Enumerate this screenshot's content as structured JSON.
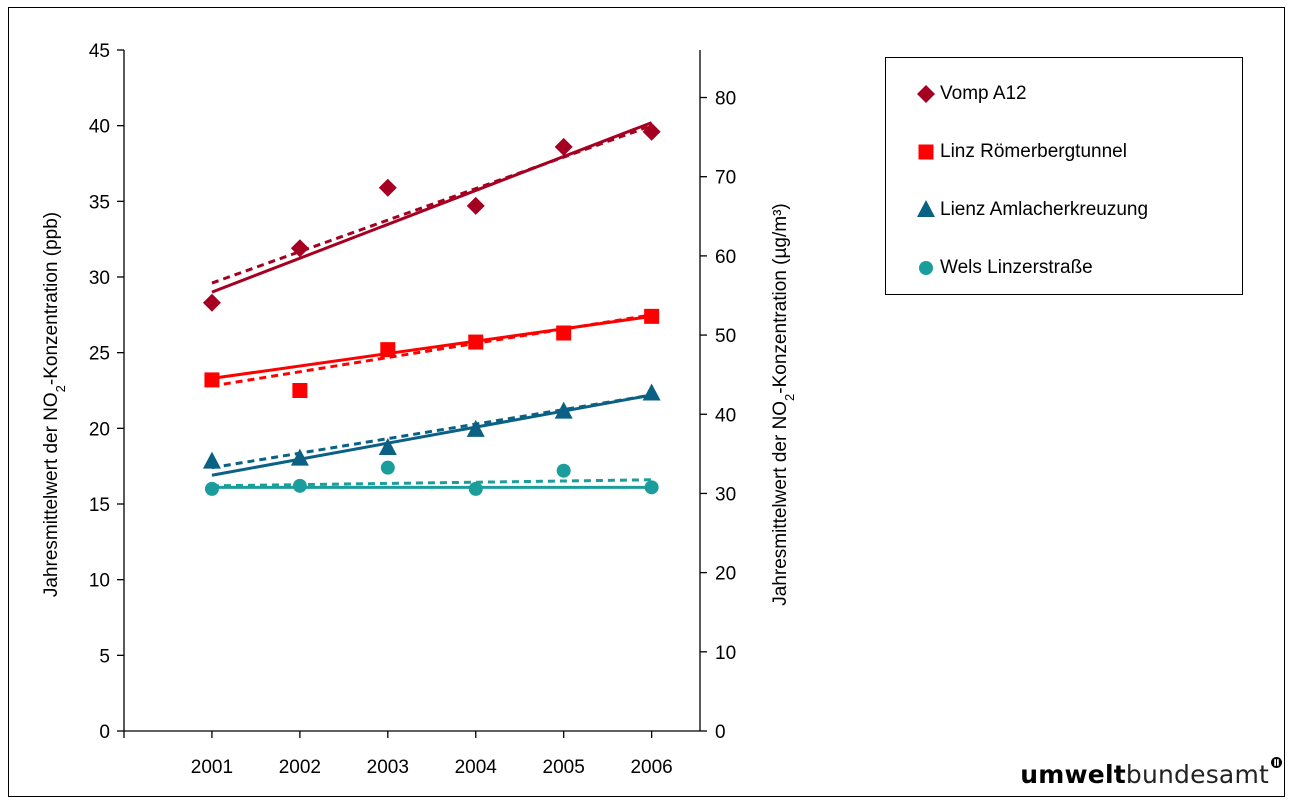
{
  "chart_data": {
    "type": "scatter",
    "x": [
      2001,
      2002,
      2003,
      2004,
      2005,
      2006
    ],
    "xlim": [
      2000,
      2006.55
    ],
    "y_left": {
      "label": "Jahresmittelwert der NO₂-Konzentration (ppb)",
      "ylim": [
        0,
        45
      ],
      "ticks": [
        0,
        5,
        10,
        15,
        20,
        25,
        30,
        35,
        40,
        45
      ]
    },
    "y_right": {
      "label": "Jahresmittelwert der NO₂-Konzentration (µg/m³)",
      "ylim": [
        0,
        86
      ],
      "ticks": [
        0,
        10,
        20,
        30,
        40,
        50,
        60,
        70,
        80
      ]
    },
    "grid": false,
    "legend_placement": "right",
    "series": [
      {
        "name": "Vomp A12",
        "marker": "diamond",
        "color": "#A50021",
        "values": [
          28.3,
          31.9,
          35.9,
          34.7,
          38.6,
          39.6
        ],
        "trend_solid": [
          29.0,
          40.2
        ],
        "trend_dotted": [
          29.6,
          40.0
        ]
      },
      {
        "name": "Linz Römerbergtunnel",
        "marker": "square",
        "color": "#FF0000",
        "values": [
          23.2,
          22.5,
          25.2,
          25.7,
          26.3,
          27.4
        ],
        "trend_solid": [
          23.3,
          27.4
        ],
        "trend_dotted": [
          22.8,
          27.5
        ]
      },
      {
        "name": "Lienz Amlacherkreuzung",
        "marker": "triangle",
        "color": "#0B6184",
        "values": [
          17.8,
          18.0,
          18.7,
          19.9,
          21.1,
          22.3
        ],
        "trend_solid": [
          16.9,
          22.2
        ],
        "trend_dotted": [
          17.4,
          22.2
        ]
      },
      {
        "name": "Wels Linzerstraße",
        "marker": "circle",
        "color": "#1B9E9B",
        "values": [
          16.0,
          16.2,
          17.4,
          null,
          17.2,
          16.1
        ],
        "values_extra": {
          "2004": 16.0
        },
        "trend_solid": [
          16.1,
          16.1
        ],
        "trend_dotted": [
          16.2,
          16.6
        ]
      }
    ]
  },
  "logo": {
    "bold": "umwelt",
    "light": "bundesamt"
  }
}
